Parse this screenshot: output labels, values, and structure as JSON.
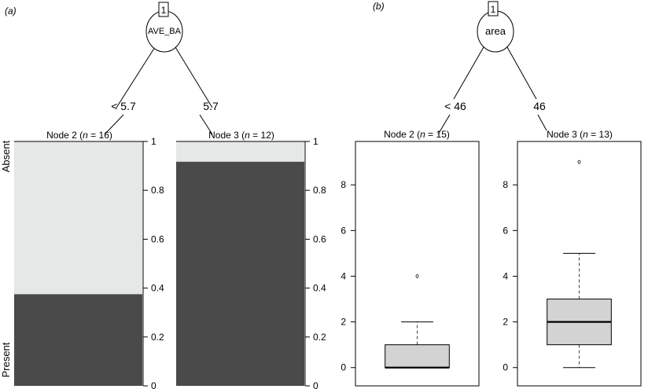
{
  "chart_data": [
    {
      "panel": "(a)",
      "type": "tree-spineplot",
      "root": {
        "id": "1",
        "variable": "AVE_BA"
      },
      "edges": [
        "< 5.7",
        "5.7"
      ],
      "leaves": [
        {
          "title": "Node 2 (n = 16)",
          "node": "Node 2",
          "n": "16",
          "present": 0.375,
          "absent": 0.625
        },
        {
          "title": "Node 3 (n = 12)",
          "node": "Node 3",
          "n": "12",
          "present": 0.917,
          "absent": 0.083
        }
      ],
      "categories": [
        "Absent",
        "Present"
      ],
      "colors": {
        "absent": "#e6e7e7",
        "present": "#4a4a4a"
      },
      "ylim": [
        0,
        1
      ],
      "yticks": [
        "0",
        "0.2",
        "0.4",
        "0.6",
        "0.8",
        "1"
      ]
    },
    {
      "panel": "(b)",
      "type": "tree-boxplot",
      "root": {
        "id": "1",
        "variable": "area"
      },
      "edges": [
        "< 46",
        "46"
      ],
      "leaves": [
        {
          "title": "Node 2 (n = 15)",
          "node": "Node 2",
          "n": "15",
          "min": 0,
          "q1": 0,
          "median": 0,
          "q3": 1,
          "max": 2,
          "outliers": [
            4
          ]
        },
        {
          "title": "Node 3 (n = 13)",
          "node": "Node 3",
          "n": "13",
          "min": 0,
          "q1": 1,
          "median": 2,
          "q3": 3,
          "max": 5,
          "outliers": [
            9
          ]
        }
      ],
      "colors": {
        "box": "#d3d3d3"
      },
      "ylim": [
        -0.8,
        9.9
      ],
      "yticks": [
        0,
        2,
        4,
        6,
        8
      ]
    }
  ]
}
